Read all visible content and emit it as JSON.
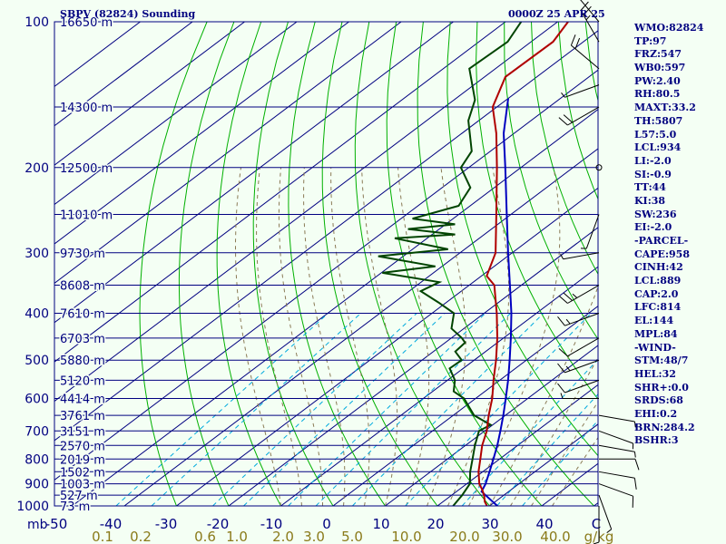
{
  "header": {
    "title": "SBPV (82824) Sounding",
    "date": "0000Z 25 APR 25"
  },
  "stats": [
    "WMO:82824",
    "TP:97",
    "FRZ:547",
    "WB0:597",
    "PW:2.40",
    "RH:80.5",
    "MAXT:33.2",
    "TH:5807",
    "L57:5.0",
    "LCL:934",
    "LI:-2.0",
    "SI:-0.9",
    "TT:44",
    "KI:38",
    "SW:236",
    "EI:-2.0",
    "-PARCEL-",
    "CAPE:958",
    "CINH:42",
    "LCL:889",
    "CAP:2.0",
    "LFC:814",
    "EL:144",
    "MPL:84",
    "-WIND-",
    "STM:48/7",
    "HEL:32",
    "SHR+:0.0",
    "SRDS:68",
    "EHI:0.2",
    "BRN:284.2",
    "BSHR:3"
  ],
  "axes": {
    "pressure_unit": "mb",
    "mixing_unit": "g/kg",
    "pressure_ticks": [
      100,
      200,
      300,
      400,
      500,
      600,
      700,
      800,
      900,
      1000
    ],
    "temperature_ticks": [
      "-50",
      "-40",
      "-30",
      "-20",
      "-10",
      "0",
      "10",
      "20",
      "30",
      "40",
      "C"
    ],
    "mixing_ticks": [
      "0.1",
      "0.2",
      "0.6",
      "1.0",
      "2.0",
      "3.0",
      "5.0",
      "10.0",
      "20.0",
      "30.0",
      "40.0"
    ],
    "height_labels": [
      {
        "p": 100,
        "label": "16650 m"
      },
      {
        "p": 150,
        "label": "14300 m"
      },
      {
        "p": 200,
        "label": "12500 m"
      },
      {
        "p": 250,
        "label": "11010 m"
      },
      {
        "p": 300,
        "label": "9730 m"
      },
      {
        "p": 350,
        "label": "8608 m"
      },
      {
        "p": 400,
        "label": "7610 m"
      },
      {
        "p": 450,
        "label": "6703 m"
      },
      {
        "p": 500,
        "label": "5880 m"
      },
      {
        "p": 550,
        "label": "5120 m"
      },
      {
        "p": 600,
        "label": "4414 m"
      },
      {
        "p": 650,
        "label": "3761 m"
      },
      {
        "p": 700,
        "label": "3151 m"
      },
      {
        "p": 750,
        "label": "2570 m"
      },
      {
        "p": 800,
        "label": "2019 m"
      },
      {
        "p": 850,
        "label": "1502 m"
      },
      {
        "p": 900,
        "label": "1003 m"
      },
      {
        "p": 950,
        "label": "527 m"
      },
      {
        "p": 1000,
        "label": "73 m"
      }
    ]
  },
  "colors": {
    "background": "#f4fff4",
    "isobar": "#000080",
    "isotherm": "#000080",
    "dry_adiabat": "#00b000",
    "moist_adiabat": "#8a7a55",
    "mixing_ratio": "#00aadd",
    "temperature": "#b00000",
    "dewpoint": "#004400",
    "parcel": "#0000c0",
    "wind": "#000000",
    "text": "#000080",
    "mixing_text": "#8a7a1a"
  },
  "chart_data": {
    "type": "skew-t",
    "title": "SBPV (82824) Sounding",
    "xlabel": "C",
    "ylabel": "mb",
    "xlim": [
      -50,
      40
    ],
    "ylim": [
      1000,
      100
    ],
    "temperature": {
      "p": [
        1000,
        980,
        950,
        925,
        900,
        850,
        800,
        750,
        700,
        650,
        600,
        550,
        500,
        450,
        400,
        350,
        335,
        300,
        250,
        200,
        170,
        150,
        130,
        110,
        100
      ],
      "t": [
        29.5,
        28,
        26.2,
        24.4,
        22.4,
        19.2,
        16.3,
        13.2,
        10.4,
        6.8,
        3.2,
        -1.2,
        -5.8,
        -11.2,
        -17.6,
        -25.2,
        -29,
        -33.2,
        -42.8,
        -54.6,
        -63.4,
        -70.8,
        -76,
        -75.8,
        -78
      ]
    },
    "dewpoint": {
      "p": [
        1000,
        950,
        900,
        850,
        800,
        750,
        700,
        680,
        650,
        600,
        580,
        550,
        520,
        500,
        480,
        460,
        450,
        430,
        400,
        380,
        360,
        345,
        330,
        320,
        305,
        295,
        280,
        275,
        268,
        262,
        255,
        240,
        220,
        200,
        185,
        160,
        145,
        125,
        110,
        100
      ],
      "td": [
        23,
        22,
        20.6,
        17.6,
        14.8,
        11.8,
        8.9,
        9.6,
        4,
        -2.2,
        -6,
        -8.6,
        -12.6,
        -12.4,
        -15.8,
        -16.2,
        -18,
        -22.4,
        -25.8,
        -31.5,
        -37.8,
        -36.5,
        -49.8,
        -41.3,
        -54.8,
        -43.2,
        -56.2,
        -45.6,
        -56,
        -48.2,
        -57.8,
        -52.2,
        -54.6,
        -61.5,
        -63.6,
        -72,
        -76,
        -85,
        -84.5,
        -87
      ]
    },
    "parcel": {
      "p": [
        1000,
        934,
        900,
        850,
        800,
        750,
        700,
        650,
        600,
        550,
        500,
        450,
        400,
        350,
        300,
        250,
        200,
        170,
        144
      ],
      "t": [
        31.5,
        24.8,
        23.6,
        21.3,
        18.8,
        16.1,
        13,
        9.6,
        5.8,
        1.6,
        -3.2,
        -8.6,
        -14.8,
        -22.2,
        -30.8,
        -40.8,
        -53,
        -62,
        -70
      ]
    },
    "wind_barbs": [
      {
        "p": 1000,
        "dir": 180,
        "kt": 5
      },
      {
        "p": 950,
        "dir": 160,
        "kt": 5
      },
      {
        "p": 900,
        "dir": 110,
        "kt": 10
      },
      {
        "p": 850,
        "dir": 100,
        "kt": 10
      },
      {
        "p": 800,
        "dir": 90,
        "kt": 10
      },
      {
        "p": 750,
        "dir": 100,
        "kt": 5
      },
      {
        "p": 700,
        "dir": 110,
        "kt": 5
      },
      {
        "p": 650,
        "dir": 100,
        "kt": 5
      },
      {
        "p": 600,
        "dir": 270,
        "kt": 5
      },
      {
        "p": 550,
        "dir": 250,
        "kt": 10
      },
      {
        "p": 500,
        "dir": 250,
        "kt": 15
      },
      {
        "p": 450,
        "dir": 240,
        "kt": 10
      },
      {
        "p": 400,
        "dir": 250,
        "kt": 15
      },
      {
        "p": 350,
        "dir": 240,
        "kt": 25
      },
      {
        "p": 300,
        "dir": 260,
        "kt": 5
      },
      {
        "p": 250,
        "dir": 200,
        "kt": 5
      },
      {
        "p": 200,
        "dir": 180,
        "kt": 0
      },
      {
        "p": 150,
        "dir": 240,
        "kt": 20
      },
      {
        "p": 135,
        "dir": 250,
        "kt": 5
      },
      {
        "p": 125,
        "dir": 310,
        "kt": 20
      },
      {
        "p": 110,
        "dir": 330,
        "kt": 25
      },
      {
        "p": 100,
        "dir": 320,
        "kt": 20
      }
    ]
  }
}
